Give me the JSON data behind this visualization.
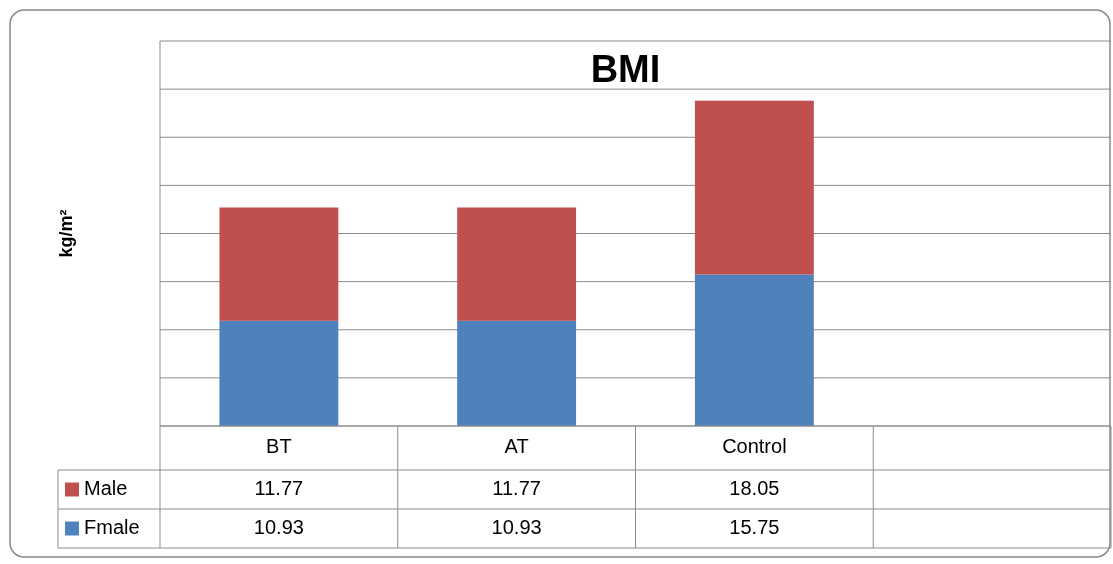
{
  "chart_data": {
    "type": "bar",
    "title": "BMI",
    "ylabel": "kg/m²",
    "categories": [
      "BT",
      "AT",
      "Control",
      null
    ],
    "stacked": true,
    "series": [
      {
        "name": "Fmale",
        "color": "#4f81bd",
        "values": [
          10.93,
          10.93,
          15.75,
          null
        ]
      },
      {
        "name": "Male",
        "color": "#c0504d",
        "values": [
          11.77,
          11.77,
          18.05,
          null
        ]
      }
    ],
    "ylim": [
      0,
      40
    ],
    "yticks": [
      {
        "value": 0,
        "label": null
      },
      {
        "value": 5,
        "label": null
      },
      {
        "value": 10,
        "label": null
      },
      {
        "value": 15,
        "label": null
      },
      {
        "value": 20,
        "label": null
      },
      {
        "value": 25,
        "label": null
      },
      {
        "value": 30,
        "label": null
      },
      {
        "value": 35,
        "label": null
      },
      {
        "value": 40,
        "label": null
      }
    ],
    "grid": "y",
    "tick_labels": "x",
    "data_labels": true,
    "legend": "bottom left"
  }
}
